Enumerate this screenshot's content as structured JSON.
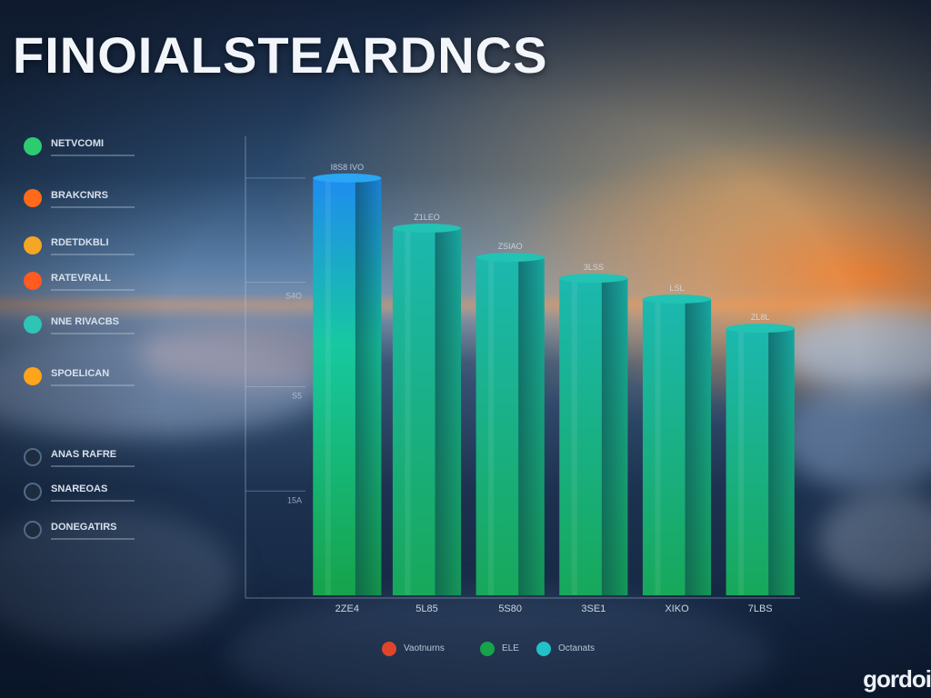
{
  "title": "FINOIALSTEARDNCS",
  "brand": "gordoi",
  "side_legend": [
    {
      "label": "NETVCOMI",
      "color": "#2ecc71",
      "style": "solid"
    },
    {
      "label": "BRAKCNRS",
      "color": "#ff6a1a",
      "style": "solid"
    },
    {
      "label": "RDETDKBLI",
      "color": "#f5a623",
      "style": "solid"
    },
    {
      "label": "RATEVRALL",
      "color": "#ff5a1f",
      "style": "solid"
    },
    {
      "label": "NNE RIVACBS",
      "color": "#2ec4b6",
      "style": "solid"
    },
    {
      "label": "SPOELICAN",
      "color": "#ffa41b",
      "style": "solid"
    },
    {
      "label": "ANAS RAFRE",
      "color": "#1d2c3f",
      "style": "ring"
    },
    {
      "label": "SNAREOAS",
      "color": "#1d2c3f",
      "style": "ring"
    },
    {
      "label": "DONEGATIRS",
      "color": "#2f7d4a",
      "style": "ring"
    }
  ],
  "bottom_legend": [
    {
      "label": "Vaotnurns",
      "color": "#e0452b"
    },
    {
      "label": "ELE",
      "color": "#16a34a"
    },
    {
      "label": "Octanats",
      "color": "#22c0c9"
    }
  ],
  "chart_data": {
    "type": "bar",
    "title": "FINOIALSTEARDNCS",
    "categories": [
      "2ZE4",
      "5L85",
      "5S80",
      "3SE1",
      "XIKO",
      "7LBS"
    ],
    "values": [
      1000,
      880,
      810,
      760,
      710,
      640
    ],
    "data_labels": [
      "I8S8 IVO",
      "Z1LEO",
      "ZSIAO",
      "3LSS",
      "LSL",
      "ZL8L"
    ],
    "ytick_labels": [
      "S4O",
      "S5",
      "15A"
    ],
    "ylim": [
      0,
      1100
    ],
    "xlabel": "",
    "ylabel": "",
    "grid": true,
    "legend_position": "left"
  }
}
